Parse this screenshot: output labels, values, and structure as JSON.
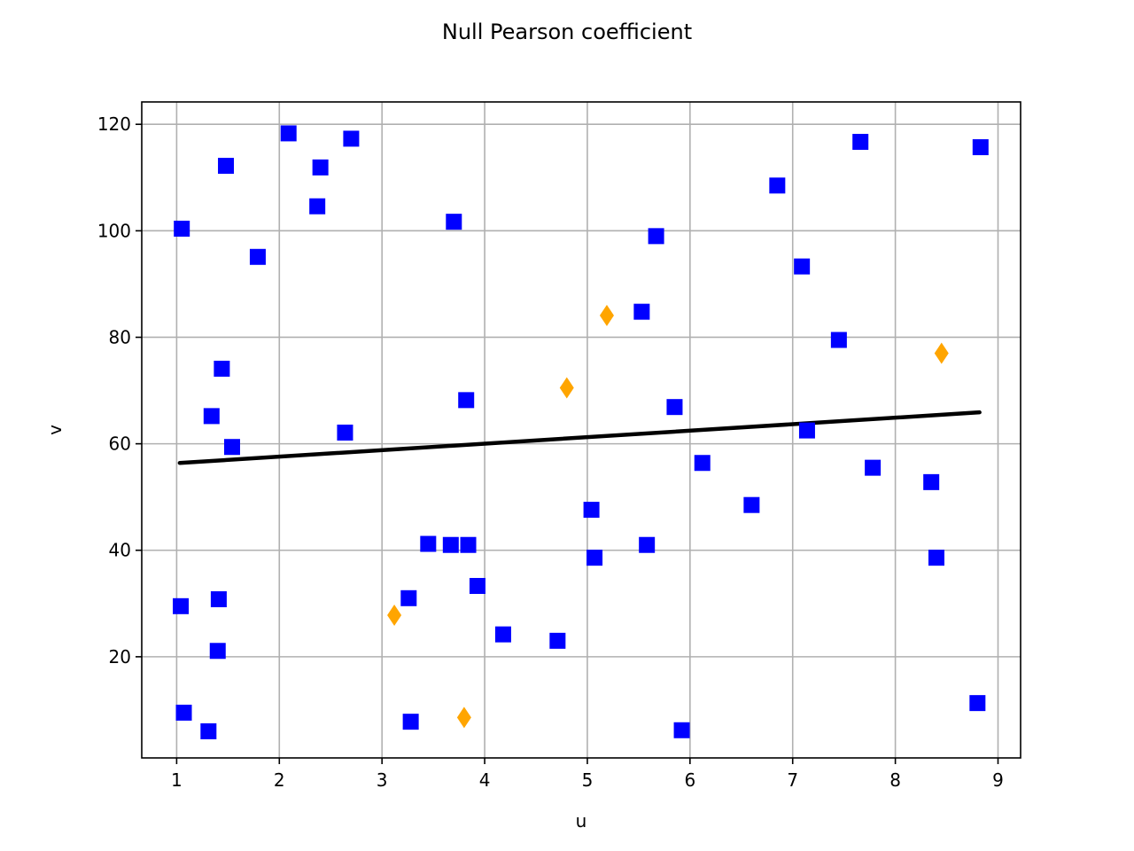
{
  "chart_data": {
    "type": "scatter",
    "title": "Null Pearson coefficient",
    "xlabel": "u",
    "ylabel": "v",
    "xlim": [
      0.66,
      9.22
    ],
    "ylim": [
      1.0,
      124.2
    ],
    "xticks": [
      1,
      2,
      3,
      4,
      5,
      6,
      7,
      8,
      9
    ],
    "yticks": [
      20,
      40,
      60,
      80,
      100,
      120
    ],
    "grid": true,
    "legend": "none",
    "colors": {
      "main": "#0000ff",
      "highlight": "#ffa500",
      "trend": "#000000",
      "grid": "#b0b0b0"
    },
    "series": [
      {
        "marker": "square",
        "color": "#0000ff",
        "points": [
          [
            1.05,
            100.4
          ],
          [
            1.48,
            112.2
          ],
          [
            2.09,
            118.3
          ],
          [
            2.4,
            111.9
          ],
          [
            2.7,
            117.3
          ],
          [
            2.37,
            104.6
          ],
          [
            1.79,
            95.1
          ],
          [
            3.7,
            101.7
          ],
          [
            5.67,
            99.0
          ],
          [
            5.53,
            84.8
          ],
          [
            6.85,
            108.5
          ],
          [
            7.66,
            116.7
          ],
          [
            8.83,
            115.7
          ],
          [
            7.09,
            93.3
          ],
          [
            7.45,
            79.5
          ],
          [
            1.44,
            74.1
          ],
          [
            1.34,
            65.2
          ],
          [
            1.54,
            59.4
          ],
          [
            2.64,
            62.1
          ],
          [
            3.82,
            68.2
          ],
          [
            5.85,
            66.9
          ],
          [
            7.14,
            62.5
          ],
          [
            6.12,
            56.4
          ],
          [
            7.78,
            55.5
          ],
          [
            8.35,
            52.8
          ],
          [
            6.6,
            48.5
          ],
          [
            5.04,
            47.6
          ],
          [
            3.45,
            41.2
          ],
          [
            3.67,
            41.0
          ],
          [
            3.84,
            41.0
          ],
          [
            5.58,
            41.0
          ],
          [
            5.07,
            38.6
          ],
          [
            8.4,
            38.6
          ],
          [
            3.93,
            33.3
          ],
          [
            3.26,
            31.0
          ],
          [
            1.41,
            30.8
          ],
          [
            1.04,
            29.5
          ],
          [
            4.18,
            24.2
          ],
          [
            4.71,
            23.0
          ],
          [
            1.4,
            21.1
          ],
          [
            1.07,
            9.5
          ],
          [
            1.31,
            6.0
          ],
          [
            3.28,
            7.8
          ],
          [
            5.92,
            6.2
          ],
          [
            8.8,
            11.3
          ]
        ]
      },
      {
        "marker": "diamond",
        "color": "#ffa500",
        "points": [
          [
            5.19,
            84.1
          ],
          [
            4.8,
            70.5
          ],
          [
            8.45,
            77.0
          ],
          [
            3.12,
            27.8
          ],
          [
            3.8,
            8.6
          ]
        ]
      }
    ],
    "trend_line": {
      "color": "#000000",
      "points": [
        [
          1.03,
          56.4
        ],
        [
          8.82,
          65.9
        ]
      ]
    }
  }
}
